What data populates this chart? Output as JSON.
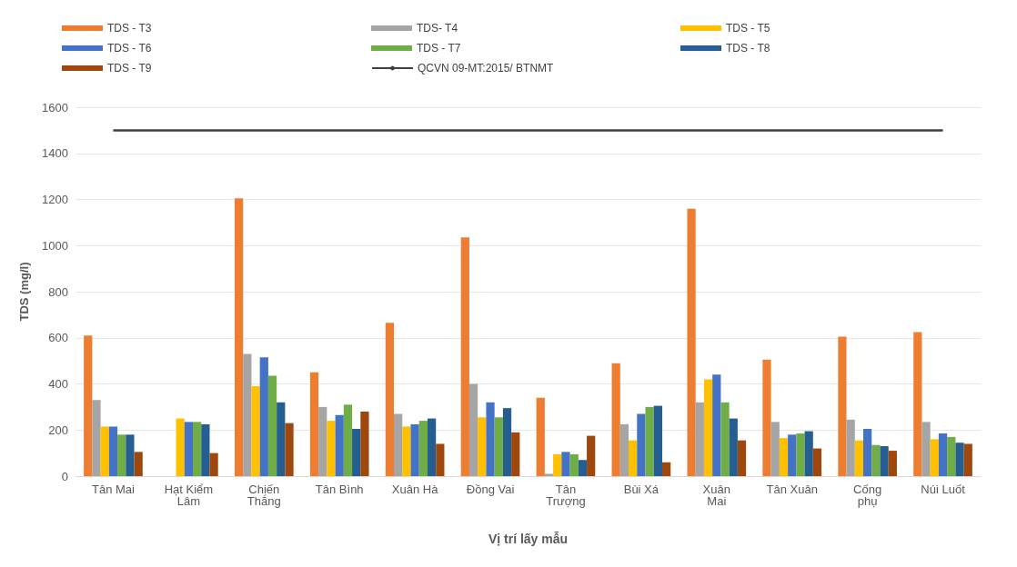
{
  "chart_data": {
    "type": "bar",
    "xlabel": "Vị trí lấy mẫu",
    "ylabel": "TDS (mg/l)",
    "categories": [
      "Tân Mai",
      "Hạt Kiểm\nLâm",
      "Chiến\nThắng",
      "Tân Bình",
      "Xuân Hà",
      "Đồng Vai",
      "Tân\nTrượng",
      "Bùi Xá",
      "Xuân\nMai",
      "Tân Xuân",
      "Cống\nphụ",
      "Núi Luốt"
    ],
    "series": [
      {
        "name": "TDS - T3",
        "color": "#ed7d31",
        "values": [
          610,
          null,
          1205,
          450,
          665,
          1035,
          340,
          490,
          1160,
          505,
          605,
          625
        ]
      },
      {
        "name": "TDS- T4",
        "color": "#a5a5a5",
        "values": [
          330,
          null,
          530,
          300,
          270,
          400,
          10,
          225,
          320,
          235,
          245,
          235
        ]
      },
      {
        "name": "TDS - T5",
        "color": "#ffc000",
        "values": [
          215,
          250,
          390,
          240,
          215,
          255,
          95,
          155,
          420,
          165,
          155,
          160
        ]
      },
      {
        "name": "TDS - T6",
        "color": "#4472c4",
        "values": [
          215,
          235,
          515,
          265,
          225,
          320,
          105,
          270,
          440,
          180,
          205,
          185
        ]
      },
      {
        "name": "TDS - T7",
        "color": "#70ad47",
        "values": [
          180,
          235,
          435,
          310,
          240,
          255,
          95,
          300,
          320,
          185,
          135,
          170
        ]
      },
      {
        "name": "TDS - T8",
        "color": "#255e91",
        "values": [
          180,
          225,
          320,
          205,
          250,
          295,
          70,
          305,
          250,
          195,
          130,
          145
        ]
      },
      {
        "name": "TDS - T9",
        "color": "#9e480e",
        "values": [
          105,
          100,
          230,
          280,
          140,
          190,
          175,
          60,
          155,
          120,
          110,
          140
        ]
      },
      {
        "name": "QCVN 09-MT:2015/ BTNMT",
        "type": "line",
        "color": "#404040",
        "values": [
          1500,
          1500,
          1500,
          1500,
          1500,
          1500,
          1500,
          1500,
          1500,
          1500,
          1500,
          1500
        ]
      }
    ],
    "marker": "none",
    "line_style": "solid",
    "ylim": [
      0,
      1600
    ],
    "yticks": [
      0,
      200,
      400,
      600,
      800,
      1000,
      1200,
      1400,
      1600
    ],
    "grid": "y",
    "legend": "top"
  }
}
